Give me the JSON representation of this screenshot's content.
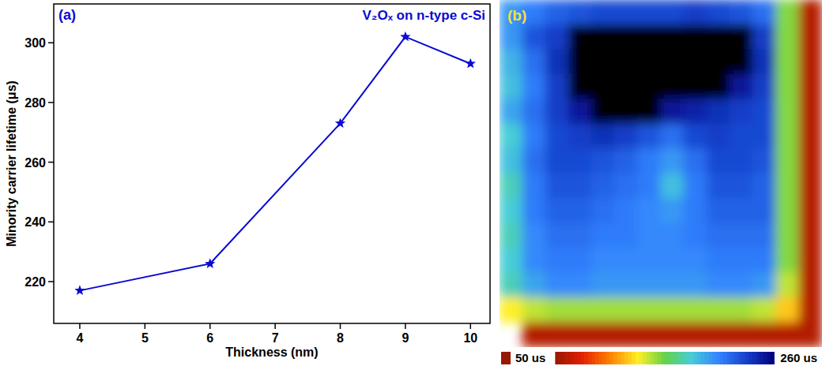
{
  "chart_data": [
    {
      "type": "line",
      "label": "(a)",
      "title": "V₂Oₓ on n-type c-Si",
      "x_label": "Thickness (nm)",
      "y_label": "Minority carrier lifetime (μs)",
      "x": [
        4,
        6,
        8,
        9,
        10
      ],
      "values": [
        217,
        226,
        273,
        302,
        293
      ],
      "color": "#0a0ad2",
      "marker": "star",
      "line_style": "solid",
      "xlim": [
        3.6,
        10.3
      ],
      "xticks": [
        4,
        5,
        6,
        7,
        8,
        9,
        10
      ],
      "ylim": [
        206,
        313
      ],
      "yticks": [
        220,
        240,
        260,
        280,
        300
      ]
    },
    {
      "type": "heatmap",
      "label": "(b)",
      "cells": [
        [
          200,
          210,
          220,
          225,
          230,
          230,
          230,
          230,
          235,
          230,
          225,
          215,
          150,
          60
        ],
        [
          200,
          225,
          235,
          270,
          285,
          285,
          280,
          275,
          280,
          285,
          270,
          235,
          150,
          60
        ],
        [
          190,
          215,
          240,
          275,
          290,
          290,
          285,
          280,
          285,
          290,
          275,
          240,
          150,
          60
        ],
        [
          185,
          210,
          235,
          265,
          285,
          290,
          285,
          275,
          270,
          265,
          250,
          235,
          150,
          60
        ],
        [
          195,
          215,
          235,
          250,
          270,
          275,
          265,
          250,
          245,
          240,
          235,
          230,
          150,
          60
        ],
        [
          180,
          210,
          230,
          235,
          240,
          235,
          225,
          215,
          230,
          235,
          230,
          230,
          150,
          60
        ],
        [
          185,
          215,
          230,
          230,
          225,
          220,
          210,
          200,
          215,
          230,
          230,
          225,
          150,
          60
        ],
        [
          175,
          210,
          225,
          225,
          220,
          215,
          210,
          185,
          210,
          225,
          225,
          220,
          150,
          60
        ],
        [
          180,
          210,
          220,
          220,
          215,
          210,
          205,
          200,
          210,
          220,
          220,
          220,
          150,
          60
        ],
        [
          175,
          205,
          215,
          215,
          210,
          210,
          205,
          205,
          210,
          215,
          215,
          215,
          150,
          60
        ],
        [
          180,
          205,
          210,
          210,
          205,
          205,
          205,
          205,
          205,
          210,
          210,
          210,
          150,
          60
        ],
        [
          175,
          195,
          205,
          205,
          200,
          200,
          200,
          200,
          200,
          205,
          205,
          200,
          140,
          60
        ],
        [
          130,
          140,
          145,
          145,
          145,
          145,
          145,
          145,
          145,
          145,
          145,
          140,
          120,
          60
        ],
        [
          null,
          60,
          60,
          60,
          60,
          60,
          60,
          60,
          60,
          60,
          60,
          60,
          60,
          60
        ]
      ],
      "colorbar_range": [
        50,
        260
      ],
      "colorbar_ticks": [
        {
          "value": 50,
          "label": "50 us"
        },
        {
          "value": 260,
          "label": "260 us"
        }
      ]
    }
  ]
}
